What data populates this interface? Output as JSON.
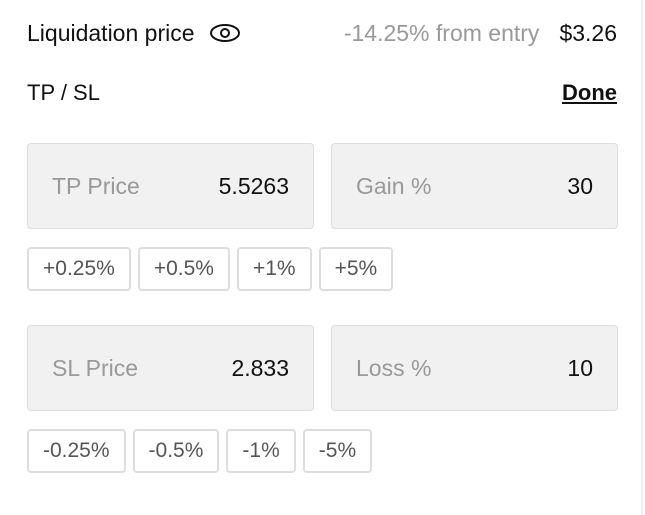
{
  "liquidation": {
    "label": "Liquidation price",
    "from_entry": "-14.25% from entry",
    "price": "$3.26"
  },
  "tpsl": {
    "label": "TP / SL",
    "done": "Done"
  },
  "tp": {
    "price_label": "TP Price",
    "price": "5.5263",
    "gain_label": "Gain %",
    "gain": "30",
    "chips": [
      "+0.25%",
      "+0.5%",
      "+1%",
      "+5%"
    ]
  },
  "sl": {
    "price_label": "SL Price",
    "price": "2.833",
    "loss_label": "Loss %",
    "loss": "10",
    "chips": [
      "-0.25%",
      "-0.5%",
      "-1%",
      "-5%"
    ]
  }
}
